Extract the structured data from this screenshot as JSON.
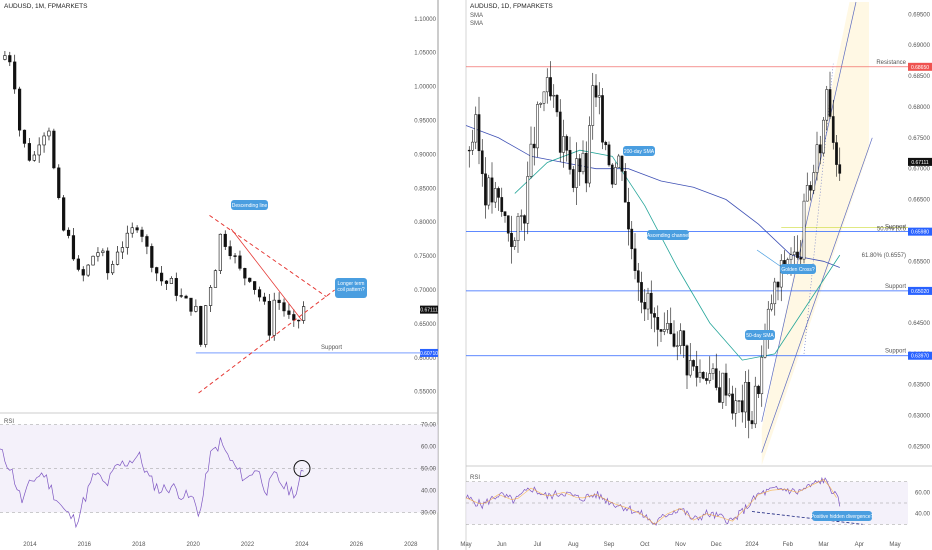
{
  "chart_data": [
    {
      "type": "candlestick",
      "title": "AUDUSD, 1M, FPMARKETS",
      "x_ticks": [
        "2014",
        "2016",
        "2018",
        "2020",
        "2022",
        "2024",
        "2026",
        "2028"
      ],
      "y_ticks": [
        "1.10000",
        "1.05000",
        "1.00000",
        "0.95000",
        "0.90000",
        "0.85000",
        "0.80000",
        "0.75000",
        "0.70000",
        "0.65000",
        "0.60000",
        "0.55000"
      ],
      "ylim": [
        0.52,
        1.11
      ],
      "price_label": "0.67111",
      "support": {
        "label": "Support",
        "value": "0.60710",
        "level": 0.6071
      },
      "annotations": [
        "Descending line",
        "Longer term coil pattern?"
      ],
      "close_path": [
        [
          2012.9,
          1.04
        ],
        [
          2013.2,
          1.05
        ],
        [
          2013.4,
          1.02
        ],
        [
          2013.6,
          0.94
        ],
        [
          2013.9,
          0.9
        ],
        [
          2014.1,
          0.89
        ],
        [
          2014.4,
          0.93
        ],
        [
          2014.7,
          0.94
        ],
        [
          2014.9,
          0.87
        ],
        [
          2015.2,
          0.79
        ],
        [
          2015.5,
          0.77
        ],
        [
          2015.8,
          0.72
        ],
        [
          2016.0,
          0.72
        ],
        [
          2016.3,
          0.75
        ],
        [
          2016.6,
          0.76
        ],
        [
          2016.9,
          0.72
        ],
        [
          2017.2,
          0.76
        ],
        [
          2017.5,
          0.77
        ],
        [
          2017.8,
          0.79
        ],
        [
          2018.0,
          0.8
        ],
        [
          2018.3,
          0.76
        ],
        [
          2018.6,
          0.73
        ],
        [
          2018.9,
          0.71
        ],
        [
          2019.2,
          0.71
        ],
        [
          2019.5,
          0.69
        ],
        [
          2019.8,
          0.68
        ],
        [
          2020.1,
          0.67
        ],
        [
          2020.25,
          0.61
        ],
        [
          2020.5,
          0.69
        ],
        [
          2020.8,
          0.73
        ],
        [
          2021.0,
          0.78
        ],
        [
          2021.2,
          0.77
        ],
        [
          2021.5,
          0.75
        ],
        [
          2021.8,
          0.72
        ],
        [
          2022.1,
          0.72
        ],
        [
          2022.3,
          0.7
        ],
        [
          2022.6,
          0.68
        ],
        [
          2022.8,
          0.64
        ],
        [
          2023.0,
          0.69
        ],
        [
          2023.2,
          0.68
        ],
        [
          2023.5,
          0.66
        ],
        [
          2023.8,
          0.64
        ],
        [
          2024.0,
          0.68
        ],
        [
          2024.1,
          0.671
        ]
      ],
      "rsi": {
        "label": "RSI",
        "y_ticks": [
          "70.00",
          "60.00",
          "50.00",
          "40.00",
          "30.00"
        ],
        "ylim": [
          22,
          73
        ],
        "values": [
          [
            2012.9,
            58
          ],
          [
            2013.3,
            50
          ],
          [
            2013.7,
            35
          ],
          [
            2014.1,
            45
          ],
          [
            2014.5,
            48
          ],
          [
            2014.9,
            38
          ],
          [
            2015.3,
            30
          ],
          [
            2015.7,
            26
          ],
          [
            2016.0,
            36
          ],
          [
            2016.4,
            48
          ],
          [
            2016.8,
            42
          ],
          [
            2017.2,
            51
          ],
          [
            2017.6,
            53
          ],
          [
            2018.0,
            56
          ],
          [
            2018.4,
            45
          ],
          [
            2018.8,
            40
          ],
          [
            2019.2,
            42
          ],
          [
            2019.6,
            38
          ],
          [
            2020.0,
            36
          ],
          [
            2020.25,
            29
          ],
          [
            2020.6,
            55
          ],
          [
            2021.0,
            62
          ],
          [
            2021.3,
            55
          ],
          [
            2021.7,
            48
          ],
          [
            2022.0,
            45
          ],
          [
            2022.3,
            51
          ],
          [
            2022.7,
            40
          ],
          [
            2023.0,
            47
          ],
          [
            2023.4,
            41
          ],
          [
            2023.8,
            39
          ],
          [
            2024.0,
            48
          ],
          [
            2024.1,
            47
          ]
        ]
      }
    },
    {
      "type": "candlestick",
      "title": "AUDUSD, 1D, FPMARKETS",
      "legend": [
        "SMA",
        "SMA"
      ],
      "x_ticks": [
        "May",
        "Jun",
        "Jul",
        "Aug",
        "Sep",
        "Oct",
        "Nov",
        "Dec",
        "2024",
        "Feb",
        "Mar",
        "Apr",
        "May"
      ],
      "y_ticks": [
        "0.69500",
        "0.69000",
        "0.68500",
        "0.68000",
        "0.67500",
        "0.67000",
        "0.66500",
        "0.66000",
        "0.65500",
        "0.65000",
        "0.64500",
        "0.64000",
        "0.63500",
        "0.63000",
        "0.62500"
      ],
      "ylim": [
        0.622,
        0.697
      ],
      "price_label": "0.67111",
      "resistance": {
        "label": "Resistance",
        "value": "0.68650",
        "level": 0.6865
      },
      "support_1": {
        "label": "Support",
        "value": "0.65980",
        "level": 0.6598
      },
      "support_2": {
        "label": "Support",
        "value": "0.65020",
        "level": 0.6502
      },
      "support_3": {
        "label": "Support",
        "value": "0.63970",
        "level": 0.6397
      },
      "fib_1": {
        "label": "50.0% (0.6",
        "level": 0.6605
      },
      "fib_2": {
        "label": "61.80% (0.6557)",
        "level": 0.6557
      },
      "annotations": [
        "200-day SMA",
        "Ascending channel",
        "Golden Cross?",
        "50-day SMA",
        "Positive hidden divergence?"
      ],
      "close_path": [
        [
          0,
          0.673
        ],
        [
          3,
          0.676
        ],
        [
          6,
          0.667
        ],
        [
          9,
          0.665
        ],
        [
          12,
          0.662
        ],
        [
          15,
          0.658
        ],
        [
          18,
          0.664
        ],
        [
          21,
          0.675
        ],
        [
          24,
          0.683
        ],
        [
          27,
          0.68
        ],
        [
          29,
          0.673
        ],
        [
          31,
          0.675
        ],
        [
          33,
          0.668
        ],
        [
          35,
          0.671
        ],
        [
          37,
          0.669
        ],
        [
          39,
          0.682
        ],
        [
          41,
          0.679
        ],
        [
          43,
          0.675
        ],
        [
          45,
          0.67
        ],
        [
          48,
          0.672
        ],
        [
          50,
          0.66
        ],
        [
          52,
          0.656
        ],
        [
          54,
          0.651
        ],
        [
          56,
          0.648
        ],
        [
          58,
          0.645
        ],
        [
          60,
          0.641
        ],
        [
          62,
          0.642
        ],
        [
          65,
          0.644
        ],
        [
          68,
          0.639
        ],
        [
          71,
          0.637
        ],
        [
          74,
          0.638
        ],
        [
          77,
          0.634
        ],
        [
          80,
          0.636
        ],
        [
          83,
          0.631
        ],
        [
          86,
          0.633
        ],
        [
          88,
          0.63
        ],
        [
          90,
          0.636
        ],
        [
          92,
          0.642
        ],
        [
          94,
          0.649
        ],
        [
          96,
          0.651
        ],
        [
          98,
          0.655
        ],
        [
          100,
          0.657
        ],
        [
          102,
          0.654
        ],
        [
          104,
          0.662
        ],
        [
          106,
          0.668
        ],
        [
          108,
          0.671
        ],
        [
          110,
          0.678
        ],
        [
          111,
          0.684
        ],
        [
          112,
          0.681
        ],
        [
          113,
          0.676
        ],
        [
          114,
          0.673
        ],
        [
          115,
          0.671
        ]
      ],
      "sma200": [
        [
          0,
          0.677
        ],
        [
          10,
          0.675
        ],
        [
          20,
          0.672
        ],
        [
          30,
          0.671
        ],
        [
          40,
          0.67
        ],
        [
          50,
          0.67
        ],
        [
          60,
          0.668
        ],
        [
          70,
          0.667
        ],
        [
          80,
          0.665
        ],
        [
          90,
          0.661
        ],
        [
          100,
          0.656
        ],
        [
          110,
          0.655
        ],
        [
          115,
          0.654
        ]
      ],
      "sma50": [
        [
          15,
          0.666
        ],
        [
          25,
          0.671
        ],
        [
          35,
          0.673
        ],
        [
          45,
          0.672
        ],
        [
          55,
          0.664
        ],
        [
          65,
          0.654
        ],
        [
          75,
          0.645
        ],
        [
          85,
          0.639
        ],
        [
          95,
          0.64
        ],
        [
          105,
          0.648
        ],
        [
          115,
          0.656
        ]
      ],
      "rsi": {
        "label": "RSI",
        "y_ticks": [
          "60.00",
          "40.00"
        ],
        "ylim": [
          20,
          80
        ],
        "values": [
          [
            0,
            55
          ],
          [
            5,
            48
          ],
          [
            10,
            58
          ],
          [
            15,
            52
          ],
          [
            20,
            64
          ],
          [
            25,
            56
          ],
          [
            30,
            60
          ],
          [
            35,
            54
          ],
          [
            40,
            58
          ],
          [
            45,
            50
          ],
          [
            50,
            45
          ],
          [
            55,
            38
          ],
          [
            58,
            30
          ],
          [
            62,
            40
          ],
          [
            66,
            45
          ],
          [
            70,
            34
          ],
          [
            74,
            40
          ],
          [
            78,
            37
          ],
          [
            82,
            33
          ],
          [
            86,
            45
          ],
          [
            90,
            58
          ],
          [
            94,
            62
          ],
          [
            98,
            63
          ],
          [
            102,
            60
          ],
          [
            106,
            66
          ],
          [
            110,
            72
          ],
          [
            112,
            65
          ],
          [
            115,
            50
          ]
        ]
      }
    }
  ]
}
